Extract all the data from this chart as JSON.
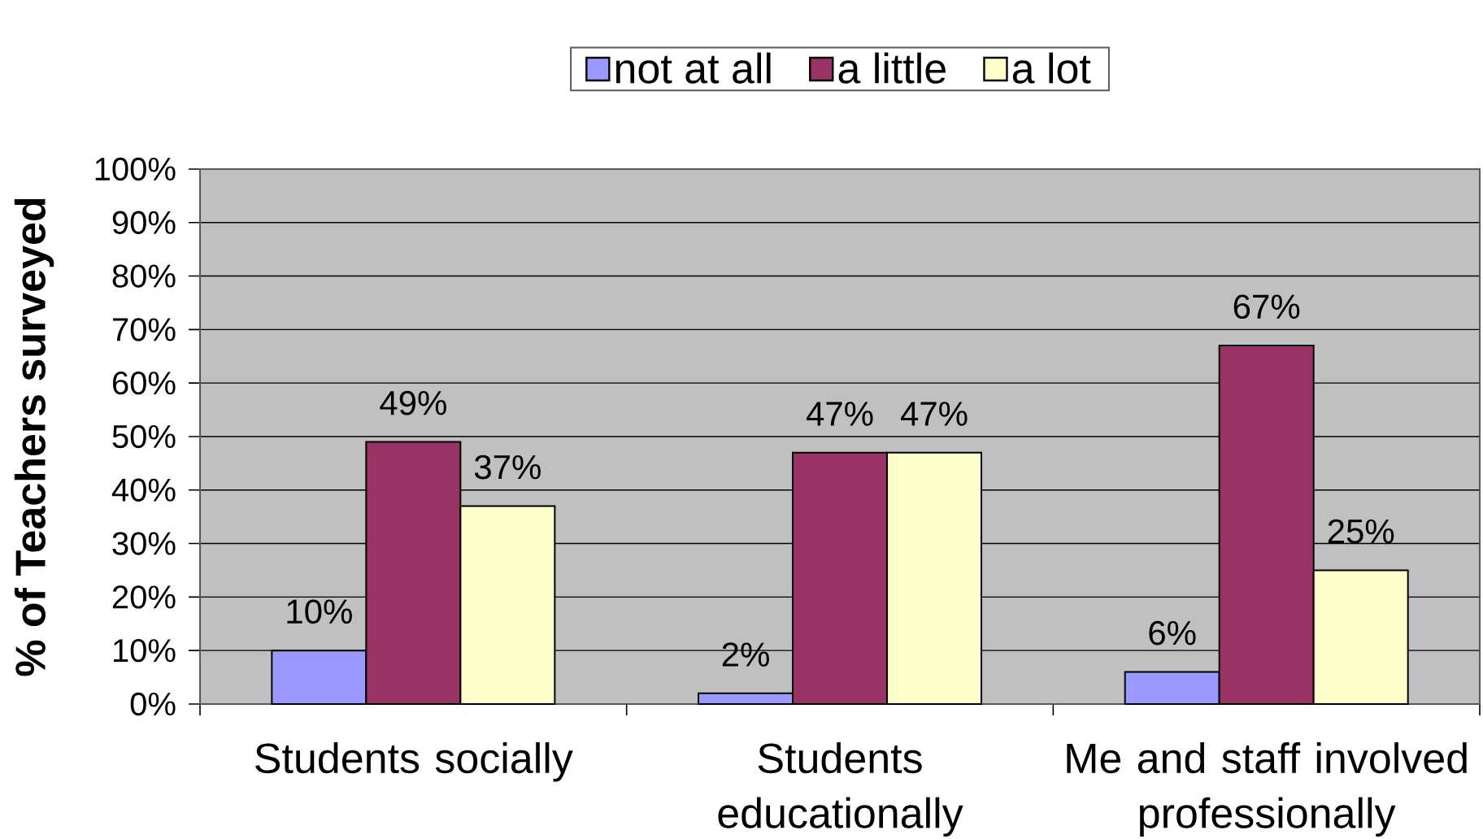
{
  "chart_data": {
    "type": "bar",
    "categories": [
      "Students socially",
      "Students educationally",
      "Me and staff involved professionally"
    ],
    "series": [
      {
        "name": "not at all",
        "color": "#9999ff",
        "values": [
          10,
          2,
          6
        ],
        "value_labels": [
          "10%",
          "2%",
          "6%"
        ]
      },
      {
        "name": "a little",
        "color": "#993366",
        "values": [
          49,
          47,
          67
        ],
        "value_labels": [
          "49%",
          "47%",
          "67%"
        ]
      },
      {
        "name": "a lot",
        "color": "#ffffcc",
        "values": [
          37,
          47,
          25
        ],
        "value_labels": [
          "37%",
          "47%",
          "25%"
        ]
      }
    ],
    "ylabel": "% of Teachers surveyed",
    "ylim": [
      0,
      100
    ],
    "yticks": [
      {
        "value": 0,
        "label": "0%"
      },
      {
        "value": 10,
        "label": "10%"
      },
      {
        "value": 20,
        "label": "20%"
      },
      {
        "value": 30,
        "label": "30%"
      },
      {
        "value": 40,
        "label": "40%"
      },
      {
        "value": 50,
        "label": "50%"
      },
      {
        "value": 60,
        "label": "60%"
      },
      {
        "value": 70,
        "label": "70%"
      },
      {
        "value": 80,
        "label": "80%"
      },
      {
        "value": 90,
        "label": "90%"
      },
      {
        "value": 100,
        "label": "100%"
      }
    ],
    "grid": "y",
    "legend": "top"
  }
}
